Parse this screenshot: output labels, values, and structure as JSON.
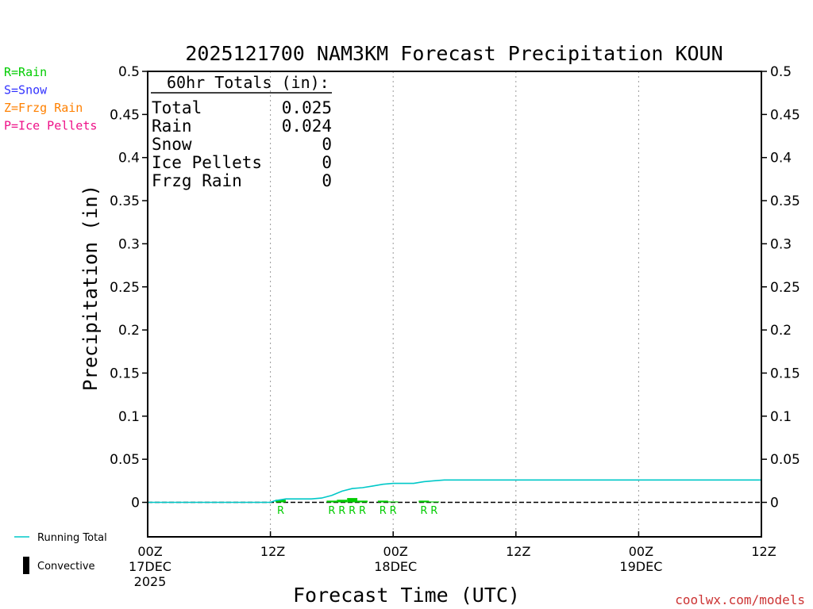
{
  "chart_data": {
    "type": "line",
    "title": "2025121700 NAM3KM Forecast Precipitation KOUN",
    "ylabel": "Precipitation (in)",
    "xlabel": "Forecast Time (UTC)",
    "ylim": [
      -0.04,
      0.5
    ],
    "xlim_hours": [
      0,
      60
    ],
    "yticks": [
      "0.5",
      "0.45",
      "0.4",
      "0.35",
      "0.3",
      "0.25",
      "0.2",
      "0.15",
      "0.1",
      "0.05",
      "0"
    ],
    "ytick_values": [
      0.5,
      0.45,
      0.4,
      0.35,
      0.3,
      0.25,
      0.2,
      0.15,
      0.1,
      0.05,
      0
    ],
    "xticks": [
      {
        "hour": 0,
        "lines": [
          "00Z",
          "17DEC",
          "2025"
        ]
      },
      {
        "hour": 12,
        "lines": [
          "12Z"
        ]
      },
      {
        "hour": 24,
        "lines": [
          "00Z",
          "18DEC"
        ]
      },
      {
        "hour": 36,
        "lines": [
          "12Z"
        ]
      },
      {
        "hour": 48,
        "lines": [
          "00Z",
          "19DEC"
        ]
      },
      {
        "hour": 60,
        "lines": [
          "12Z"
        ]
      }
    ],
    "legend_types": [
      {
        "label": "R=Rain",
        "color": "#00cc00"
      },
      {
        "label": "S=Snow",
        "color": "#3333ff"
      },
      {
        "label": "Z=Frzg Rain",
        "color": "#ff8000"
      },
      {
        "label": "P=Ice Pellets",
        "color": "#ee1188"
      }
    ],
    "totals": {
      "header": "60hr Totals (in):",
      "rows": [
        {
          "label": "Total",
          "value": "0.025"
        },
        {
          "label": "Rain",
          "value": "0.024"
        },
        {
          "label": "Snow",
          "value": "0"
        },
        {
          "label": "Ice Pellets",
          "value": "0"
        },
        {
          "label": "Frzg Rain",
          "value": "0"
        }
      ]
    },
    "series": [
      {
        "name": "Running Total",
        "color": "#00c8c8",
        "points": [
          [
            0,
            0
          ],
          [
            11,
            0
          ],
          [
            12,
            0
          ],
          [
            12.5,
            0.002
          ],
          [
            13.5,
            0.004
          ],
          [
            16,
            0.004
          ],
          [
            17,
            0.005
          ],
          [
            18,
            0.008
          ],
          [
            19,
            0.013
          ],
          [
            20,
            0.016
          ],
          [
            21,
            0.017
          ],
          [
            22,
            0.019
          ],
          [
            23,
            0.021
          ],
          [
            24,
            0.022
          ],
          [
            25,
            0.022
          ],
          [
            26,
            0.022
          ],
          [
            27,
            0.024
          ],
          [
            28,
            0.025
          ],
          [
            29,
            0.026
          ],
          [
            60,
            0.026
          ]
        ]
      }
    ],
    "precip_bars": [
      {
        "hour": 13,
        "value": 0.003
      },
      {
        "hour": 18,
        "value": 0.002
      },
      {
        "hour": 19,
        "value": 0.003
      },
      {
        "hour": 20,
        "value": 0.005
      },
      {
        "hour": 21,
        "value": 0.002
      },
      {
        "hour": 23,
        "value": 0.002
      },
      {
        "hour": 24,
        "value": 0.001
      },
      {
        "hour": 27,
        "value": 0.002
      },
      {
        "hour": 28,
        "value": 0.001
      }
    ],
    "precip_type_markers": [
      {
        "hour": 13,
        "type": "R"
      },
      {
        "hour": 18,
        "type": "R"
      },
      {
        "hour": 19,
        "type": "R"
      },
      {
        "hour": 20,
        "type": "R"
      },
      {
        "hour": 21,
        "type": "R"
      },
      {
        "hour": 23,
        "type": "R"
      },
      {
        "hour": 24,
        "type": "R"
      },
      {
        "hour": 27,
        "type": "R"
      },
      {
        "hour": 28,
        "type": "R"
      }
    ],
    "bottom_legend": [
      {
        "label": "Running Total",
        "symbol": "line",
        "color": "#00c8c8"
      },
      {
        "label": "Convective",
        "symbol": "bar",
        "color": "#000000"
      }
    ],
    "credit": "coolwx.com/models"
  },
  "colors": {
    "axis": "#000000",
    "grid": "#999999",
    "rain": "#00cc00",
    "running_total": "#00c8c8",
    "credit": "#cc3333"
  }
}
